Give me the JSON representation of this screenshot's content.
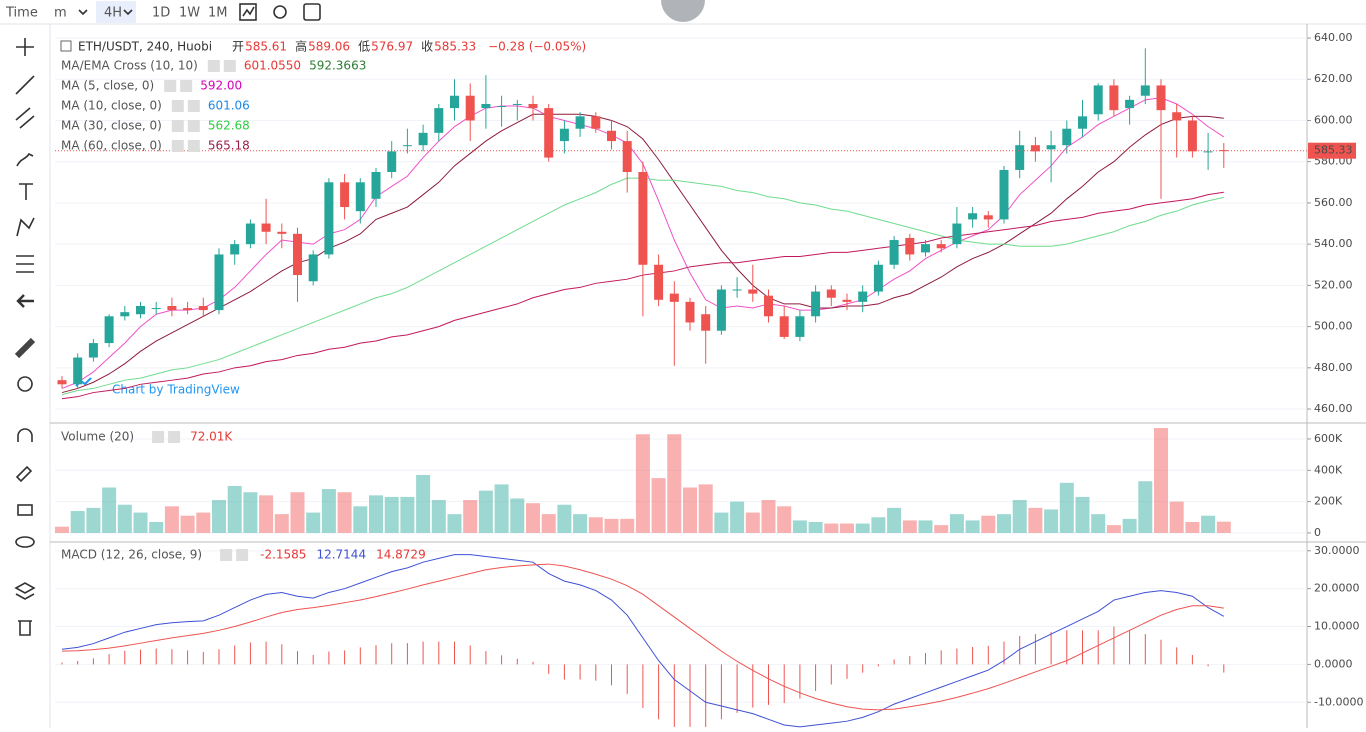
{
  "toolbar": [
    "Time",
    "m",
    "4H",
    "1D",
    "1W",
    "1M"
  ],
  "watermark": "Chart by TradingView",
  "legend": {
    "symbol": "ETH/USDT, 240, Huobi",
    "ohlc": [
      {
        "label": "开",
        "value": "585.61"
      },
      {
        "label": "高",
        "value": "589.06"
      },
      {
        "label": "低",
        "value": "576.97"
      },
      {
        "label": "收",
        "value": "585.33"
      }
    ],
    "change": "−0.28 (−0.05%)",
    "indicators": [
      {
        "name": "MA/EMA Cross (10, 10)",
        "values": [
          {
            "text": "601.0550",
            "color": "#e53935"
          },
          {
            "text": "592.3663",
            "color": "#2e7d32"
          }
        ]
      },
      {
        "name": "MA (5, close, 0)",
        "values": [
          {
            "text": "592.00",
            "color": "#d500b8"
          }
        ]
      },
      {
        "name": "MA (10, close, 0)",
        "values": [
          {
            "text": "601.06",
            "color": "#1e88e5"
          }
        ]
      },
      {
        "name": "MA (30, close, 0)",
        "values": [
          {
            "text": "562.68",
            "color": "#2ecc40"
          }
        ]
      },
      {
        "name": "MA (60, close, 0)",
        "values": [
          {
            "text": "565.18",
            "color": "#9c1f4a"
          }
        ]
      }
    ]
  },
  "price": {
    "ylim": [
      454.2,
      646.8
    ],
    "yticks": [
      {
        "value": 460,
        "label": "460.00"
      },
      {
        "value": 480,
        "label": "480.00"
      },
      {
        "value": 500,
        "label": "500.00"
      },
      {
        "value": 520,
        "label": "520.00"
      },
      {
        "value": 540,
        "label": "540.00"
      },
      {
        "value": 560,
        "label": "560.00"
      },
      {
        "value": 580,
        "label": "580.00"
      },
      {
        "value": 600,
        "label": "600.00"
      },
      {
        "value": 620,
        "label": "620.00"
      },
      {
        "value": 640,
        "label": "640.00"
      }
    ],
    "up_color": "#26a69a",
    "down_color": "#ef5350",
    "candles": [
      [
        474,
        476,
        470,
        472
      ],
      [
        472,
        487,
        470,
        485
      ],
      [
        485,
        494,
        483,
        492
      ],
      [
        492,
        506,
        490,
        505
      ],
      [
        505,
        510,
        503,
        507
      ],
      [
        506,
        512,
        504,
        510
      ],
      [
        509,
        512,
        506,
        509
      ],
      [
        510,
        514,
        505,
        508
      ],
      [
        509,
        512,
        506,
        508
      ],
      [
        510,
        514,
        505,
        508
      ],
      [
        508,
        538,
        506,
        535
      ],
      [
        535,
        542,
        530,
        540
      ],
      [
        540,
        552,
        538,
        550
      ],
      [
        550,
        562,
        540,
        546
      ],
      [
        546,
        550,
        538,
        545
      ],
      [
        545,
        548,
        512,
        525
      ],
      [
        522,
        537,
        520,
        535
      ],
      [
        535,
        572,
        533,
        570
      ],
      [
        570,
        574,
        552,
        558
      ],
      [
        556,
        572,
        550,
        570
      ],
      [
        562,
        577,
        558,
        575
      ],
      [
        575,
        590,
        572,
        585
      ],
      [
        588,
        596,
        584,
        588
      ],
      [
        588,
        598,
        585,
        594
      ],
      [
        594,
        608,
        590,
        606
      ],
      [
        606,
        620,
        600,
        612
      ],
      [
        612,
        618,
        590,
        600
      ],
      [
        606,
        622,
        596,
        608
      ],
      [
        607,
        612,
        597,
        607
      ],
      [
        608,
        610,
        600,
        608
      ],
      [
        608,
        612,
        600,
        606
      ],
      [
        606,
        608,
        580,
        582
      ],
      [
        590,
        600,
        584,
        596
      ],
      [
        596,
        604,
        592,
        602
      ],
      [
        602,
        604,
        594,
        596
      ],
      [
        595,
        600,
        586,
        590
      ],
      [
        590,
        595,
        565,
        575
      ],
      [
        575,
        580,
        505,
        530
      ],
      [
        530,
        535,
        510,
        513
      ],
      [
        516,
        522,
        481,
        512
      ],
      [
        512,
        514,
        498,
        502
      ],
      [
        506,
        510,
        482,
        498
      ],
      [
        498,
        520,
        496,
        518
      ],
      [
        518,
        524,
        514,
        518
      ],
      [
        518,
        530,
        512,
        516
      ],
      [
        515,
        518,
        502,
        505
      ],
      [
        505,
        510,
        494,
        495
      ],
      [
        495,
        508,
        493,
        505
      ],
      [
        505,
        520,
        502,
        517
      ],
      [
        518,
        520,
        510,
        514
      ],
      [
        513,
        516,
        508,
        512
      ],
      [
        512,
        520,
        507,
        517
      ],
      [
        517,
        532,
        515,
        530
      ],
      [
        530,
        544,
        528,
        542
      ],
      [
        543,
        545,
        532,
        535
      ],
      [
        536,
        542,
        534,
        540
      ],
      [
        540,
        542,
        536,
        538
      ],
      [
        540,
        558,
        538,
        550
      ],
      [
        552,
        558,
        548,
        555
      ],
      [
        554,
        556,
        548,
        552
      ],
      [
        552,
        578,
        550,
        576
      ],
      [
        576,
        595,
        572,
        588
      ],
      [
        588,
        592,
        580,
        585
      ],
      [
        586,
        595,
        570,
        588
      ],
      [
        588,
        600,
        584,
        596
      ],
      [
        596,
        610,
        592,
        602
      ],
      [
        603,
        618,
        600,
        617
      ],
      [
        617,
        620,
        602,
        605
      ],
      [
        606,
        612,
        598,
        610
      ],
      [
        612,
        635,
        608,
        617
      ],
      [
        617,
        620,
        562,
        605
      ],
      [
        604,
        608,
        582,
        600
      ],
      [
        600,
        602,
        582,
        585
      ],
      [
        585,
        594,
        576,
        585
      ],
      [
        585.61,
        589.06,
        576.97,
        585.33
      ]
    ],
    "lines": [
      {
        "color": "#f050c8",
        "values": [
          470,
          473,
          478,
          485,
          492,
          500,
          506,
          508,
          508,
          509,
          513,
          519,
          527,
          535,
          542,
          541,
          540,
          545,
          547,
          552,
          563,
          568,
          573,
          582,
          590,
          597,
          602,
          606,
          607,
          607,
          606,
          602,
          600,
          598,
          596,
          593,
          589,
          579,
          561,
          542,
          526,
          513,
          509,
          510,
          509,
          511,
          510,
          508,
          508,
          509,
          511,
          513,
          518,
          523,
          527,
          533,
          537,
          541,
          544,
          547,
          554,
          564,
          571,
          578,
          587,
          592,
          598,
          602,
          606,
          610,
          611,
          608,
          603,
          597,
          592
        ]
      },
      {
        "color": "#8e1c3c",
        "values": [
          468,
          470,
          473,
          477,
          482,
          488,
          493,
          497,
          501,
          505,
          509,
          513,
          517,
          522,
          527,
          531,
          533,
          538,
          541,
          545,
          552,
          555,
          558,
          564,
          570,
          578,
          584,
          590,
          595,
          599,
          603,
          603,
          603,
          603,
          602,
          600,
          597,
          591,
          581,
          570,
          559,
          548,
          537,
          528,
          520,
          514,
          511,
          511,
          509,
          509,
          510,
          510,
          511,
          514,
          516,
          520,
          524,
          529,
          533,
          536,
          540,
          545,
          550,
          555,
          562,
          568,
          575,
          580,
          587,
          593,
          598,
          601,
          602,
          602,
          601.06
        ]
      },
      {
        "color": "#6fdc8c",
        "values": [
          467,
          469,
          470,
          472,
          474,
          475,
          477,
          479,
          480,
          482,
          484,
          487,
          490,
          493,
          496,
          499,
          502,
          505,
          508,
          511,
          514,
          516,
          519,
          523,
          527,
          531,
          535,
          539,
          543,
          547,
          551,
          555,
          559,
          562,
          565,
          569,
          572,
          572,
          571,
          571,
          570,
          569,
          568,
          566,
          565,
          563,
          562,
          560,
          559,
          557,
          556,
          554,
          552,
          550,
          548,
          546,
          544,
          542,
          541,
          540,
          540,
          539,
          539,
          539,
          540,
          542,
          544,
          546,
          549,
          551,
          554,
          556,
          559,
          561,
          562.68
        ]
      },
      {
        "color": "#c2185b",
        "values": [
          465,
          466,
          468,
          469,
          470,
          472,
          473,
          474,
          475,
          477,
          478,
          480,
          481,
          483,
          484,
          486,
          487,
          489,
          490,
          492,
          493,
          495,
          496,
          498,
          500,
          503,
          505,
          507,
          509,
          511,
          514,
          516,
          518,
          519,
          521,
          522,
          523,
          525,
          526,
          527,
          529,
          530,
          531,
          531,
          532,
          533,
          534,
          534,
          535,
          536,
          536,
          537,
          538,
          539,
          540,
          541,
          543,
          544,
          545,
          546,
          547,
          548,
          549,
          551,
          552,
          553,
          555,
          556,
          557,
          559,
          560,
          561,
          562,
          564,
          565.18
        ]
      }
    ]
  },
  "volume": {
    "title": "Volume (20)",
    "last": "72.01K",
    "ylim": [
      -45,
      689
    ],
    "yticks": [
      {
        "value": 0,
        "label": "0"
      },
      {
        "value": 200,
        "label": "200K"
      },
      {
        "value": 400,
        "label": "400K"
      },
      {
        "value": 600,
        "label": "600K"
      }
    ],
    "values": [
      40,
      140,
      160,
      290,
      180,
      130,
      70,
      170,
      110,
      130,
      210,
      300,
      260,
      240,
      120,
      260,
      130,
      280,
      260,
      170,
      240,
      230,
      230,
      370,
      210,
      120,
      210,
      270,
      310,
      220,
      190,
      120,
      180,
      120,
      100,
      90,
      90,
      630,
      350,
      630,
      290,
      310,
      130,
      200,
      130,
      210,
      170,
      80,
      70,
      60,
      60,
      60,
      100,
      160,
      80,
      80,
      50,
      120,
      80,
      110,
      120,
      210,
      160,
      150,
      320,
      230,
      120,
      50,
      90,
      330,
      670,
      200,
      70,
      110,
      72.01
    ]
  },
  "macd": {
    "title": "MACD (12, 26, close, 9)",
    "ylim": [
      -16.8,
      31.8
    ],
    "yticks": [
      {
        "value": -10,
        "label": "-10.0000"
      },
      {
        "value": 0,
        "label": "0.0000"
      },
      {
        "value": 10,
        "label": "10.0000"
      },
      {
        "value": 20,
        "label": "20.0000"
      },
      {
        "value": 30,
        "label": "30.0000"
      }
    ],
    "macd_color": "#3f51d5",
    "signal_color": "#ef5350",
    "hist_color": "#ef5350",
    "histogram": [
      0.5,
      0.9,
      1.6,
      2.7,
      3.6,
      3.9,
      4.2,
      4,
      3.7,
      3.3,
      4,
      5,
      5.8,
      6,
      5.3,
      3.5,
      2.5,
      3.4,
      3.7,
      4.5,
      5.1,
      5.6,
      5.6,
      6,
      6,
      6,
      5,
      3.5,
      2.4,
      1.5,
      0.7,
      -2.5,
      -4,
      -4,
      -4.3,
      -5.5,
      -7.8,
      -11.5,
      -14.5,
      -16.5,
      -16.5,
      -16.5,
      -14.5,
      -12.8,
      -11.4,
      -10.7,
      -10.2,
      -9,
      -7,
      -5.3,
      -3.8,
      -2.2,
      -0.5,
      1.3,
      2.2,
      3,
      3.7,
      4.2,
      4.6,
      4.9,
      6,
      7.5,
      8,
      8.5,
      9,
      9,
      9,
      10,
      9,
      8,
      6.5,
      4.5,
      2.5,
      -0.5,
      -2.1585
    ],
    "macd": [
      4,
      4.5,
      5.5,
      7,
      8.5,
      9.5,
      10.5,
      11,
      11.3,
      11.5,
      13,
      15,
      17,
      18.5,
      19,
      18,
      17.5,
      19,
      20,
      21.5,
      23,
      24.5,
      25.5,
      27,
      28,
      29,
      29,
      28.5,
      28,
      27.5,
      27,
      24,
      22,
      21,
      19.5,
      17,
      13,
      7,
      1,
      -4,
      -7,
      -10,
      -11,
      -12,
      -13,
      -14.5,
      -16,
      -16.5,
      -16,
      -15.5,
      -15,
      -14,
      -12.5,
      -10.5,
      -9,
      -7.5,
      -6,
      -4.5,
      -3,
      -1.5,
      1,
      4,
      6,
      8,
      10,
      12,
      14,
      17,
      18,
      19,
      19.5,
      19,
      18,
      15,
      12.7144
    ],
    "signal": [
      3.5,
      3.6,
      3.9,
      4.3,
      4.9,
      5.6,
      6.3,
      7,
      7.6,
      8.2,
      9,
      10,
      11.2,
      12.5,
      13.7,
      14.5,
      15,
      15.6,
      16.3,
      17,
      17.9,
      18.9,
      19.9,
      21,
      22,
      23,
      24,
      25,
      25.6,
      26,
      26.3,
      26.5,
      26,
      25,
      23.8,
      22.5,
      20.8,
      18.5,
      15.5,
      12.5,
      9.5,
      6.5,
      3.5,
      0.8,
      -1.6,
      -3.8,
      -5.8,
      -7.5,
      -9,
      -10.2,
      -11.2,
      -11.8,
      -12,
      -11.8,
      -11.2,
      -10.5,
      -9.7,
      -8.7,
      -7.6,
      -6.4,
      -5,
      -3.5,
      -2,
      -0.5,
      1,
      3,
      5,
      7,
      9,
      11,
      13,
      14.5,
      15.5,
      15.5,
      14.8729
    ]
  }
}
